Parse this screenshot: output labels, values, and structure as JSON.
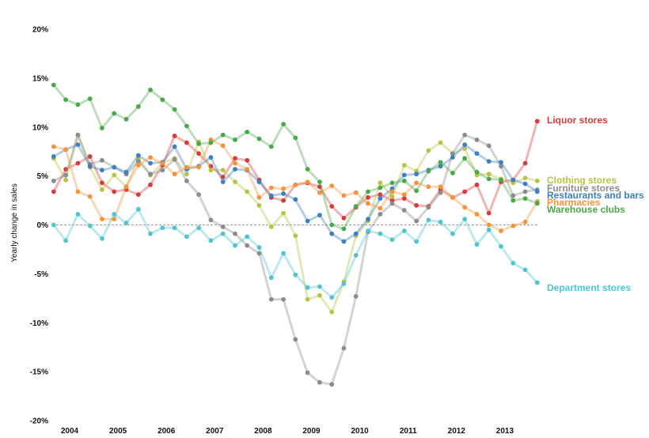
{
  "chart_data": {
    "type": "line",
    "title": "",
    "xlabel": "",
    "ylabel": "Yearly change in sales",
    "ylim": [
      -20,
      20
    ],
    "y_ticks": [
      {
        "value": 20,
        "label": "20%"
      },
      {
        "value": 15,
        "label": "15%"
      },
      {
        "value": 10,
        "label": "10%"
      },
      {
        "value": 5,
        "label": "5%"
      },
      {
        "value": 0,
        "label": "0%"
      },
      {
        "value": -5,
        "label": "-5%"
      },
      {
        "value": -10,
        "label": "-10%"
      },
      {
        "value": -15,
        "label": "-15%"
      },
      {
        "value": -20,
        "label": "-20%"
      }
    ],
    "x_ticks": [
      {
        "value": 2004,
        "label": "2004"
      },
      {
        "value": 2005,
        "label": "2005"
      },
      {
        "value": 2006,
        "label": "2006"
      },
      {
        "value": 2007,
        "label": "2007"
      },
      {
        "value": 2008,
        "label": "2008"
      },
      {
        "value": 2009,
        "label": "2009"
      },
      {
        "value": 2010,
        "label": "2010"
      },
      {
        "value": 2011,
        "label": "2011"
      },
      {
        "value": 2012,
        "label": "2012"
      },
      {
        "value": 2013,
        "label": "2013"
      }
    ],
    "x_start": 2003.67,
    "x_step": 0.25,
    "zero_line": true,
    "series": [
      {
        "name": "Liquor stores",
        "color": "#d63b3b",
        "values": [
          3.4,
          5.7,
          6.3,
          7.0,
          4.3,
          3.4,
          3.6,
          3.1,
          4.1,
          6.1,
          9.1,
          8.4,
          7.3,
          6.0,
          4.9,
          6.8,
          6.6,
          4.6,
          2.8,
          2.5,
          4.1,
          4.3,
          3.9,
          1.9,
          0.7,
          1.8,
          2.8,
          3.1,
          2.5,
          2.7,
          2.0,
          1.9,
          3.6,
          2.8,
          3.4,
          4.1,
          1.2,
          4.4,
          4.6,
          6.3,
          10.6
        ]
      },
      {
        "name": "Clothing stores",
        "color": "#b8c244",
        "values": [
          6.8,
          4.6,
          9.2,
          5.9,
          3.6,
          5.1,
          3.9,
          6.8,
          5.1,
          6.3,
          6.8,
          5.2,
          8.5,
          5.6,
          5.6,
          4.4,
          3.4,
          2.0,
          -0.2,
          1.2,
          -1.1,
          -7.6,
          -7.2,
          -8.9,
          -5.8,
          -1.1,
          0.4,
          4.3,
          2.9,
          6.1,
          5.5,
          7.6,
          8.4,
          7.3,
          7.8,
          5.1,
          5.2,
          4.7,
          4.3,
          4.8,
          4.5
        ]
      },
      {
        "name": "Furniture stores",
        "color": "#8c8c8c",
        "values": [
          4.5,
          5.1,
          9.2,
          6.2,
          6.6,
          5.9,
          5.2,
          6.5,
          5.2,
          5.6,
          6.7,
          4.5,
          3.1,
          0.5,
          -0.2,
          -0.9,
          -2.1,
          -2.9,
          -7.6,
          -7.6,
          -11.7,
          -15.1,
          -16.1,
          -16.3,
          -12.6,
          -7.3,
          -0.7,
          1.1,
          2.2,
          1.5,
          0.4,
          1.8,
          3.3,
          7.3,
          9.2,
          8.7,
          8.1,
          6.0,
          3.0,
          3.4,
          3.6
        ]
      },
      {
        "name": "Restaurants and bars",
        "color": "#3d7fc1",
        "values": [
          7.0,
          7.7,
          8.2,
          6.0,
          5.6,
          5.9,
          5.4,
          7.1,
          6.3,
          6.4,
          8.0,
          5.7,
          6.0,
          6.9,
          4.4,
          5.7,
          5.6,
          4.4,
          3.0,
          3.2,
          2.6,
          0.4,
          1.0,
          -0.9,
          -1.7,
          -0.9,
          0.6,
          2.7,
          3.7,
          5.1,
          5.2,
          5.6,
          6.0,
          6.9,
          8.2,
          7.3,
          6.5,
          6.4,
          4.6,
          4.2,
          3.4
        ]
      },
      {
        "name": "Pharmacies",
        "color": "#f5923a",
        "values": [
          8.0,
          7.7,
          3.4,
          2.9,
          0.6,
          0.6,
          3.9,
          6.1,
          6.9,
          6.3,
          5.2,
          5.9,
          5.9,
          8.7,
          8.1,
          6.3,
          5.7,
          2.8,
          3.8,
          3.7,
          4.1,
          4.4,
          3.3,
          4.0,
          3.0,
          3.3,
          2.2,
          1.7,
          3.4,
          3.1,
          4.3,
          3.9,
          3.9,
          2.8,
          1.8,
          1.1,
          0.0,
          -0.6,
          -0.1,
          0.3,
          2.4
        ]
      },
      {
        "name": "Warehouse clubs",
        "color": "#4aa84a",
        "values": [
          14.3,
          12.8,
          12.3,
          12.9,
          9.9,
          11.4,
          10.8,
          12.1,
          13.8,
          12.8,
          11.8,
          10.1,
          8.3,
          8.4,
          9.2,
          8.7,
          9.5,
          8.8,
          8.0,
          10.3,
          8.9,
          5.7,
          4.4,
          0.0,
          -0.4,
          1.9,
          3.4,
          3.8,
          4.3,
          4.5,
          3.5,
          5.5,
          6.4,
          5.3,
          6.8,
          5.4,
          4.7,
          4.6,
          2.5,
          2.7,
          2.2
        ]
      },
      {
        "name": "Department stores",
        "color": "#4fc4d2",
        "values": [
          0.0,
          -1.6,
          1.1,
          -0.1,
          -1.4,
          1.1,
          0.2,
          1.6,
          -0.9,
          -0.3,
          -0.3,
          -1.2,
          -0.3,
          -1.6,
          -0.9,
          -2.1,
          -1.2,
          -2.3,
          -5.4,
          -2.9,
          -5.1,
          -6.4,
          -6.3,
          -7.4,
          -6.0,
          -3.1,
          -0.6,
          -0.9,
          -1.5,
          -0.6,
          -1.7,
          0.5,
          0.3,
          -0.9,
          0.6,
          -2.0,
          -0.5,
          -2.2,
          -3.9,
          -4.6,
          -5.9
        ]
      }
    ],
    "end_labels": [
      {
        "text": "Liquor stores",
        "series": "Liquor stores"
      },
      {
        "text": "Clothing stores",
        "series": "Clothing stores"
      },
      {
        "text": "Furniture stores",
        "series": "Furniture stores"
      },
      {
        "text": "Restaurants and bars",
        "series": "Restaurants and bars"
      },
      {
        "text": "Pharmacies",
        "series": "Pharmacies"
      },
      {
        "text": "Warehouse clubs",
        "series": "Warehouse clubs"
      },
      {
        "text": "Department stores",
        "series": "Department stores"
      }
    ]
  }
}
